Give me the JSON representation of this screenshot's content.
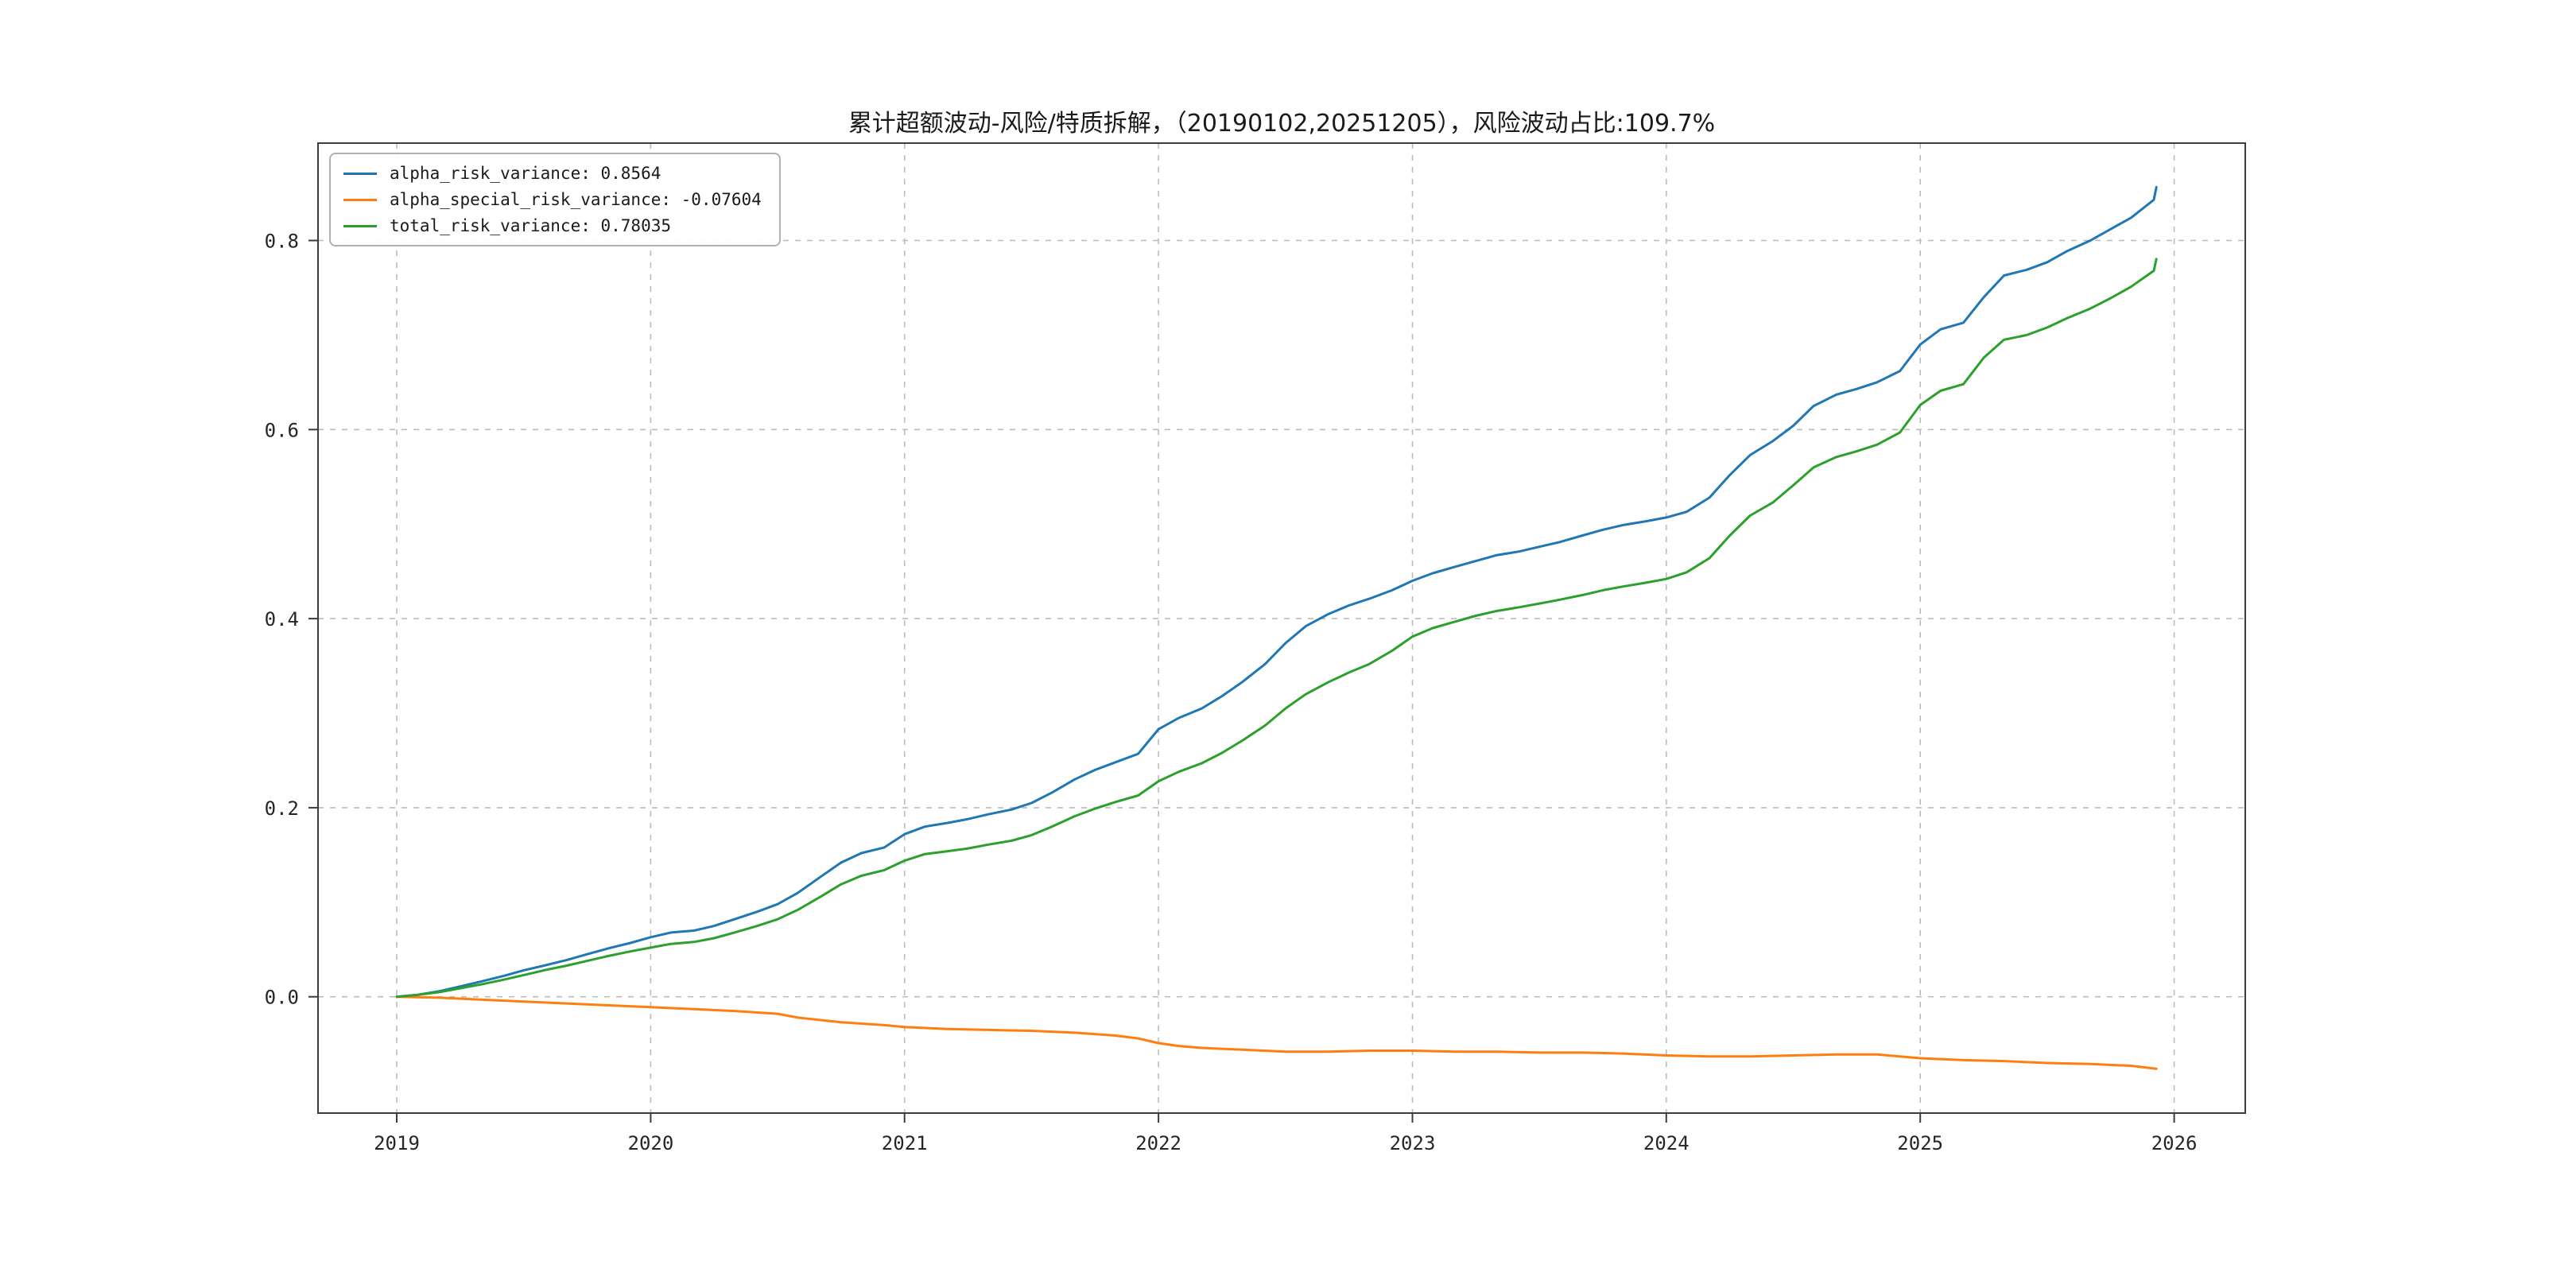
{
  "chart_data": {
    "type": "line",
    "title": "累计超额波动-风险/特质拆解，（20190102,20251205），风险波动占比:109.7%",
    "xlabel": "",
    "ylabel": "",
    "xlim": [
      2018.69,
      2026.28
    ],
    "ylim": [
      -0.123,
      0.903
    ],
    "grid": true,
    "grid_style": "dashed",
    "legend_position": "upper-left",
    "x_ticks": [
      {
        "label": "2019",
        "value": 2019
      },
      {
        "label": "2020",
        "value": 2020
      },
      {
        "label": "2021",
        "value": 2021
      },
      {
        "label": "2022",
        "value": 2022
      },
      {
        "label": "2023",
        "value": 2023
      },
      {
        "label": "2024",
        "value": 2024
      },
      {
        "label": "2025",
        "value": 2025
      },
      {
        "label": "2026",
        "value": 2026
      }
    ],
    "y_ticks": [
      {
        "label": "0.0",
        "value": 0.0
      },
      {
        "label": "0.2",
        "value": 0.2
      },
      {
        "label": "0.4",
        "value": 0.4
      },
      {
        "label": "0.6",
        "value": 0.6
      },
      {
        "label": "0.8",
        "value": 0.8
      }
    ],
    "series": [
      {
        "name": "alpha_risk_variance",
        "color": "#1f77b4",
        "final_value": 0.8564,
        "legend_label": "alpha_risk_variance: 0.8564",
        "points": [
          [
            2019.0,
            0.0
          ],
          [
            2019.08,
            0.002
          ],
          [
            2019.17,
            0.006
          ],
          [
            2019.25,
            0.011
          ],
          [
            2019.33,
            0.016
          ],
          [
            2019.42,
            0.022
          ],
          [
            2019.5,
            0.028
          ],
          [
            2019.58,
            0.033
          ],
          [
            2019.67,
            0.039
          ],
          [
            2019.75,
            0.045
          ],
          [
            2019.83,
            0.051
          ],
          [
            2019.92,
            0.057
          ],
          [
            2020.0,
            0.063
          ],
          [
            2020.08,
            0.068
          ],
          [
            2020.17,
            0.07
          ],
          [
            2020.25,
            0.075
          ],
          [
            2020.33,
            0.082
          ],
          [
            2020.42,
            0.09
          ],
          [
            2020.5,
            0.098
          ],
          [
            2020.58,
            0.11
          ],
          [
            2020.67,
            0.127
          ],
          [
            2020.75,
            0.142
          ],
          [
            2020.83,
            0.152
          ],
          [
            2020.92,
            0.158
          ],
          [
            2021.0,
            0.172
          ],
          [
            2021.08,
            0.18
          ],
          [
            2021.17,
            0.184
          ],
          [
            2021.25,
            0.188
          ],
          [
            2021.33,
            0.193
          ],
          [
            2021.42,
            0.198
          ],
          [
            2021.5,
            0.205
          ],
          [
            2021.58,
            0.216
          ],
          [
            2021.67,
            0.23
          ],
          [
            2021.75,
            0.24
          ],
          [
            2021.83,
            0.248
          ],
          [
            2021.92,
            0.257
          ],
          [
            2022.0,
            0.283
          ],
          [
            2022.08,
            0.295
          ],
          [
            2022.17,
            0.305
          ],
          [
            2022.25,
            0.318
          ],
          [
            2022.33,
            0.333
          ],
          [
            2022.42,
            0.352
          ],
          [
            2022.5,
            0.374
          ],
          [
            2022.58,
            0.392
          ],
          [
            2022.67,
            0.405
          ],
          [
            2022.75,
            0.414
          ],
          [
            2022.83,
            0.421
          ],
          [
            2022.92,
            0.43
          ],
          [
            2023.0,
            0.44
          ],
          [
            2023.08,
            0.448
          ],
          [
            2023.17,
            0.455
          ],
          [
            2023.25,
            0.461
          ],
          [
            2023.33,
            0.467
          ],
          [
            2023.42,
            0.471
          ],
          [
            2023.5,
            0.476
          ],
          [
            2023.58,
            0.481
          ],
          [
            2023.67,
            0.488
          ],
          [
            2023.75,
            0.494
          ],
          [
            2023.83,
            0.499
          ],
          [
            2023.92,
            0.503
          ],
          [
            2024.0,
            0.507
          ],
          [
            2024.08,
            0.513
          ],
          [
            2024.17,
            0.528
          ],
          [
            2024.25,
            0.552
          ],
          [
            2024.33,
            0.573
          ],
          [
            2024.42,
            0.588
          ],
          [
            2024.5,
            0.604
          ],
          [
            2024.58,
            0.625
          ],
          [
            2024.67,
            0.637
          ],
          [
            2024.75,
            0.643
          ],
          [
            2024.83,
            0.65
          ],
          [
            2024.92,
            0.662
          ],
          [
            2025.0,
            0.69
          ],
          [
            2025.08,
            0.706
          ],
          [
            2025.17,
            0.713
          ],
          [
            2025.25,
            0.74
          ],
          [
            2025.33,
            0.763
          ],
          [
            2025.42,
            0.769
          ],
          [
            2025.5,
            0.777
          ],
          [
            2025.58,
            0.789
          ],
          [
            2025.67,
            0.8
          ],
          [
            2025.75,
            0.812
          ],
          [
            2025.83,
            0.824
          ],
          [
            2025.92,
            0.843
          ],
          [
            2025.93,
            0.8564
          ]
        ]
      },
      {
        "name": "alpha_special_risk_variance",
        "color": "#ff7f0e",
        "final_value": -0.07604,
        "legend_label": "alpha_special_risk_variance: -0.07604",
        "points": [
          [
            2019.0,
            0.0
          ],
          [
            2019.17,
            -0.001
          ],
          [
            2019.33,
            -0.003
          ],
          [
            2019.5,
            -0.005
          ],
          [
            2019.67,
            -0.007
          ],
          [
            2019.83,
            -0.009
          ],
          [
            2020.0,
            -0.011
          ],
          [
            2020.17,
            -0.013
          ],
          [
            2020.33,
            -0.015
          ],
          [
            2020.5,
            -0.018
          ],
          [
            2020.58,
            -0.022
          ],
          [
            2020.75,
            -0.027
          ],
          [
            2020.92,
            -0.03
          ],
          [
            2021.0,
            -0.032
          ],
          [
            2021.17,
            -0.034
          ],
          [
            2021.33,
            -0.035
          ],
          [
            2021.5,
            -0.036
          ],
          [
            2021.67,
            -0.038
          ],
          [
            2021.83,
            -0.041
          ],
          [
            2021.92,
            -0.044
          ],
          [
            2022.0,
            -0.049
          ],
          [
            2022.08,
            -0.052
          ],
          [
            2022.17,
            -0.054
          ],
          [
            2022.33,
            -0.056
          ],
          [
            2022.5,
            -0.058
          ],
          [
            2022.67,
            -0.058
          ],
          [
            2022.83,
            -0.057
          ],
          [
            2023.0,
            -0.057
          ],
          [
            2023.17,
            -0.058
          ],
          [
            2023.33,
            -0.058
          ],
          [
            2023.5,
            -0.059
          ],
          [
            2023.67,
            -0.059
          ],
          [
            2023.83,
            -0.06
          ],
          [
            2024.0,
            -0.062
          ],
          [
            2024.17,
            -0.063
          ],
          [
            2024.33,
            -0.063
          ],
          [
            2024.5,
            -0.062
          ],
          [
            2024.67,
            -0.061
          ],
          [
            2024.83,
            -0.061
          ],
          [
            2025.0,
            -0.065
          ],
          [
            2025.17,
            -0.067
          ],
          [
            2025.33,
            -0.068
          ],
          [
            2025.5,
            -0.07
          ],
          [
            2025.67,
            -0.071
          ],
          [
            2025.83,
            -0.073
          ],
          [
            2025.93,
            -0.07604
          ]
        ]
      },
      {
        "name": "total_risk_variance",
        "color": "#2ca02c",
        "final_value": 0.78035,
        "legend_label": "total_risk_variance: 0.78035",
        "points": [
          [
            2019.0,
            0.0
          ],
          [
            2019.08,
            0.002
          ],
          [
            2019.17,
            0.005
          ],
          [
            2019.25,
            0.009
          ],
          [
            2019.33,
            0.013
          ],
          [
            2019.42,
            0.018
          ],
          [
            2019.5,
            0.023
          ],
          [
            2019.58,
            0.028
          ],
          [
            2019.67,
            0.033
          ],
          [
            2019.75,
            0.038
          ],
          [
            2019.83,
            0.043
          ],
          [
            2019.92,
            0.048
          ],
          [
            2020.0,
            0.052
          ],
          [
            2020.08,
            0.056
          ],
          [
            2020.17,
            0.058
          ],
          [
            2020.25,
            0.062
          ],
          [
            2020.33,
            0.068
          ],
          [
            2020.42,
            0.075
          ],
          [
            2020.5,
            0.082
          ],
          [
            2020.58,
            0.092
          ],
          [
            2020.67,
            0.106
          ],
          [
            2020.75,
            0.119
          ],
          [
            2020.83,
            0.128
          ],
          [
            2020.92,
            0.134
          ],
          [
            2021.0,
            0.144
          ],
          [
            2021.08,
            0.151
          ],
          [
            2021.17,
            0.154
          ],
          [
            2021.25,
            0.157
          ],
          [
            2021.33,
            0.161
          ],
          [
            2021.42,
            0.165
          ],
          [
            2021.5,
            0.171
          ],
          [
            2021.58,
            0.18
          ],
          [
            2021.67,
            0.191
          ],
          [
            2021.75,
            0.199
          ],
          [
            2021.83,
            0.206
          ],
          [
            2021.92,
            0.213
          ],
          [
            2022.0,
            0.228
          ],
          [
            2022.08,
            0.238
          ],
          [
            2022.17,
            0.247
          ],
          [
            2022.25,
            0.258
          ],
          [
            2022.33,
            0.271
          ],
          [
            2022.42,
            0.287
          ],
          [
            2022.5,
            0.305
          ],
          [
            2022.58,
            0.32
          ],
          [
            2022.67,
            0.333
          ],
          [
            2022.75,
            0.343
          ],
          [
            2022.83,
            0.352
          ],
          [
            2022.92,
            0.366
          ],
          [
            2023.0,
            0.381
          ],
          [
            2023.08,
            0.39
          ],
          [
            2023.17,
            0.397
          ],
          [
            2023.25,
            0.403
          ],
          [
            2023.33,
            0.408
          ],
          [
            2023.42,
            0.412
          ],
          [
            2023.5,
            0.416
          ],
          [
            2023.58,
            0.42
          ],
          [
            2023.67,
            0.425
          ],
          [
            2023.75,
            0.43
          ],
          [
            2023.83,
            0.434
          ],
          [
            2023.92,
            0.438
          ],
          [
            2024.0,
            0.442
          ],
          [
            2024.08,
            0.449
          ],
          [
            2024.17,
            0.464
          ],
          [
            2024.25,
            0.488
          ],
          [
            2024.33,
            0.509
          ],
          [
            2024.42,
            0.523
          ],
          [
            2024.5,
            0.541
          ],
          [
            2024.58,
            0.56
          ],
          [
            2024.67,
            0.571
          ],
          [
            2024.75,
            0.577
          ],
          [
            2024.83,
            0.584
          ],
          [
            2024.92,
            0.597
          ],
          [
            2025.0,
            0.626
          ],
          [
            2025.08,
            0.641
          ],
          [
            2025.17,
            0.648
          ],
          [
            2025.25,
            0.676
          ],
          [
            2025.33,
            0.695
          ],
          [
            2025.42,
            0.7
          ],
          [
            2025.5,
            0.708
          ],
          [
            2025.58,
            0.718
          ],
          [
            2025.67,
            0.728
          ],
          [
            2025.75,
            0.739
          ],
          [
            2025.83,
            0.751
          ],
          [
            2025.92,
            0.768
          ],
          [
            2025.93,
            0.78035
          ]
        ]
      }
    ]
  }
}
